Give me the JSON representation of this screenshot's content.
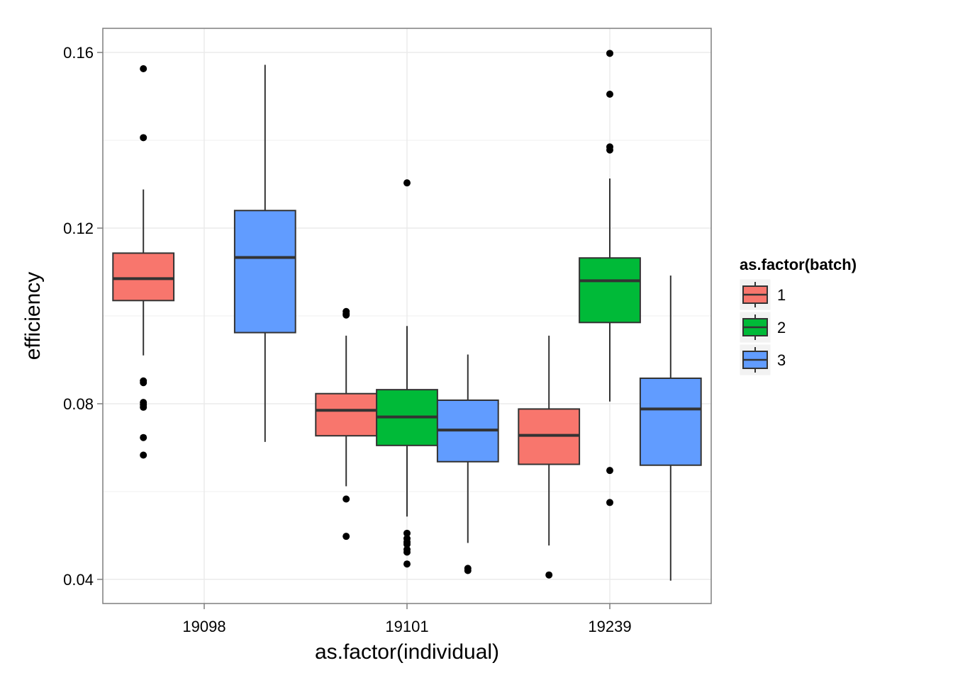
{
  "chart_data": {
    "type": "boxplot",
    "xlabel": "as.factor(individual)",
    "ylabel": "efficiency",
    "categories": [
      "19098",
      "19101",
      "19239"
    ],
    "ylim": [
      0.0345,
      0.1655
    ],
    "yticks": [
      0.04,
      0.08,
      0.12,
      0.16
    ],
    "ytick_labels": [
      "0.04",
      "0.08",
      "0.12",
      "0.16"
    ],
    "grid": true,
    "legend": {
      "title": "as.factor(batch)",
      "position": "right",
      "entries": [
        {
          "label": "1",
          "color": "#F8766D"
        },
        {
          "label": "2",
          "color": "#00BA38"
        },
        {
          "label": "3",
          "color": "#619CFF"
        }
      ]
    },
    "boxes": [
      {
        "category": "19098",
        "batch": "1",
        "whisker_low": 0.091,
        "q1": 0.1035,
        "median": 0.1085,
        "q3": 0.1143,
        "whisker_high": 0.1288,
        "outliers": [
          0.1563,
          0.1406,
          0.0852,
          0.0848,
          0.0803,
          0.0798,
          0.0792,
          0.0723,
          0.0683
        ]
      },
      {
        "category": "19098",
        "batch": "3",
        "whisker_low": 0.0713,
        "q1": 0.0962,
        "median": 0.1133,
        "q3": 0.124,
        "whisker_high": 0.1572,
        "outliers": []
      },
      {
        "category": "19101",
        "batch": "1",
        "whisker_low": 0.0612,
        "q1": 0.0727,
        "median": 0.0785,
        "q3": 0.0823,
        "whisker_high": 0.0955,
        "outliers": [
          0.101,
          0.1005,
          0.1002,
          0.0583,
          0.0498
        ]
      },
      {
        "category": "19101",
        "batch": "2",
        "whisker_low": 0.0543,
        "q1": 0.0705,
        "median": 0.077,
        "q3": 0.0832,
        "whisker_high": 0.0977,
        "outliers": [
          0.1303,
          0.0505,
          0.0493,
          0.0485,
          0.048,
          0.0468,
          0.0462,
          0.0435
        ]
      },
      {
        "category": "19101",
        "batch": "3",
        "whisker_low": 0.0483,
        "q1": 0.0668,
        "median": 0.074,
        "q3": 0.0808,
        "whisker_high": 0.0912,
        "outliers": [
          0.0425,
          0.042
        ]
      },
      {
        "category": "19239",
        "batch": "1",
        "whisker_low": 0.0477,
        "q1": 0.0662,
        "median": 0.0728,
        "q3": 0.0788,
        "whisker_high": 0.0955,
        "outliers": [
          0.041
        ]
      },
      {
        "category": "19239",
        "batch": "2",
        "whisker_low": 0.0805,
        "q1": 0.0985,
        "median": 0.108,
        "q3": 0.1132,
        "whisker_high": 0.1313,
        "outliers": [
          0.1598,
          0.1505,
          0.1385,
          0.1378,
          0.0648,
          0.0575
        ]
      },
      {
        "category": "19239",
        "batch": "3",
        "whisker_low": 0.0397,
        "q1": 0.066,
        "median": 0.0788,
        "q3": 0.0858,
        "whisker_high": 0.1092,
        "outliers": []
      }
    ]
  }
}
